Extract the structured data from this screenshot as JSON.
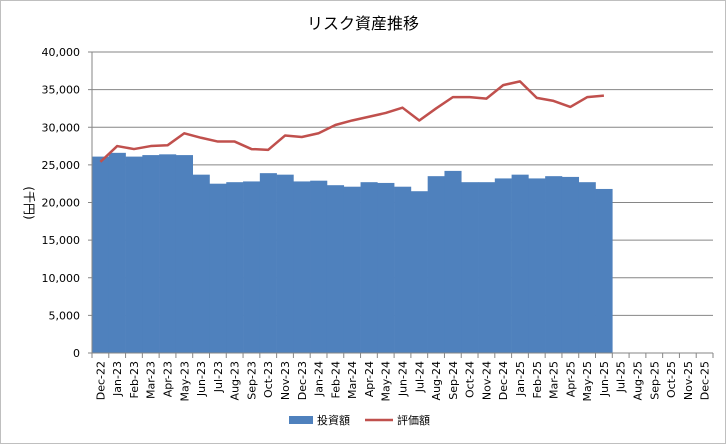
{
  "chart_data": {
    "type": "bar",
    "title": "リスク資産推移",
    "xlabel": "",
    "ylabel": "(千円)",
    "ylim": [
      0,
      40000
    ],
    "yticks": [
      0,
      5000,
      10000,
      15000,
      20000,
      25000,
      30000,
      35000,
      40000
    ],
    "ytick_labels": [
      "0",
      "5,000",
      "10,000",
      "15,000",
      "20,000",
      "25,000",
      "30,000",
      "35,000",
      "40,000"
    ],
    "grid": true,
    "legend_position": "bottom",
    "categories": [
      "Dec-22",
      "Jan-23",
      "Feb-23",
      "Mar-23",
      "Apr-23",
      "May-23",
      "Jun-23",
      "Jul-23",
      "Aug-23",
      "Sep-23",
      "Oct-23",
      "Nov-23",
      "Dec-23",
      "Jan-24",
      "Feb-24",
      "Mar-24",
      "Apr-24",
      "May-24",
      "Jun-24",
      "Jul-24",
      "Aug-24",
      "Sep-24",
      "Oct-24",
      "Nov-24",
      "Dec-24",
      "Jan-25",
      "Feb-25",
      "Mar-25",
      "Apr-25",
      "May-25",
      "Jun-25",
      "Jul-25",
      "Aug-25",
      "Sep-25",
      "Oct-25",
      "Nov-25",
      "Dec-25"
    ],
    "series": [
      {
        "name": "投資額",
        "kind": "bar",
        "color": "#4f81bd",
        "values": [
          26100,
          26600,
          26100,
          26300,
          26400,
          26300,
          23700,
          22500,
          22700,
          22800,
          23900,
          23700,
          22800,
          22900,
          22300,
          22100,
          22700,
          22600,
          22100,
          21500,
          23500,
          24200,
          22700,
          22700,
          23200,
          23700,
          23200,
          23500,
          23400,
          22700,
          21800,
          null,
          null,
          null,
          null,
          null,
          null
        ]
      },
      {
        "name": "評価額",
        "kind": "line",
        "color": "#c0504d",
        "values": [
          25400,
          27500,
          27100,
          27500,
          27600,
          29200,
          28600,
          28100,
          28100,
          27100,
          27000,
          28900,
          28700,
          29200,
          30300,
          30900,
          31400,
          31900,
          32600,
          30900,
          32500,
          34000,
          34000,
          33800,
          35600,
          36100,
          33900,
          33500,
          32700,
          34000,
          34200,
          null,
          null,
          null,
          null,
          null,
          null
        ]
      }
    ]
  }
}
